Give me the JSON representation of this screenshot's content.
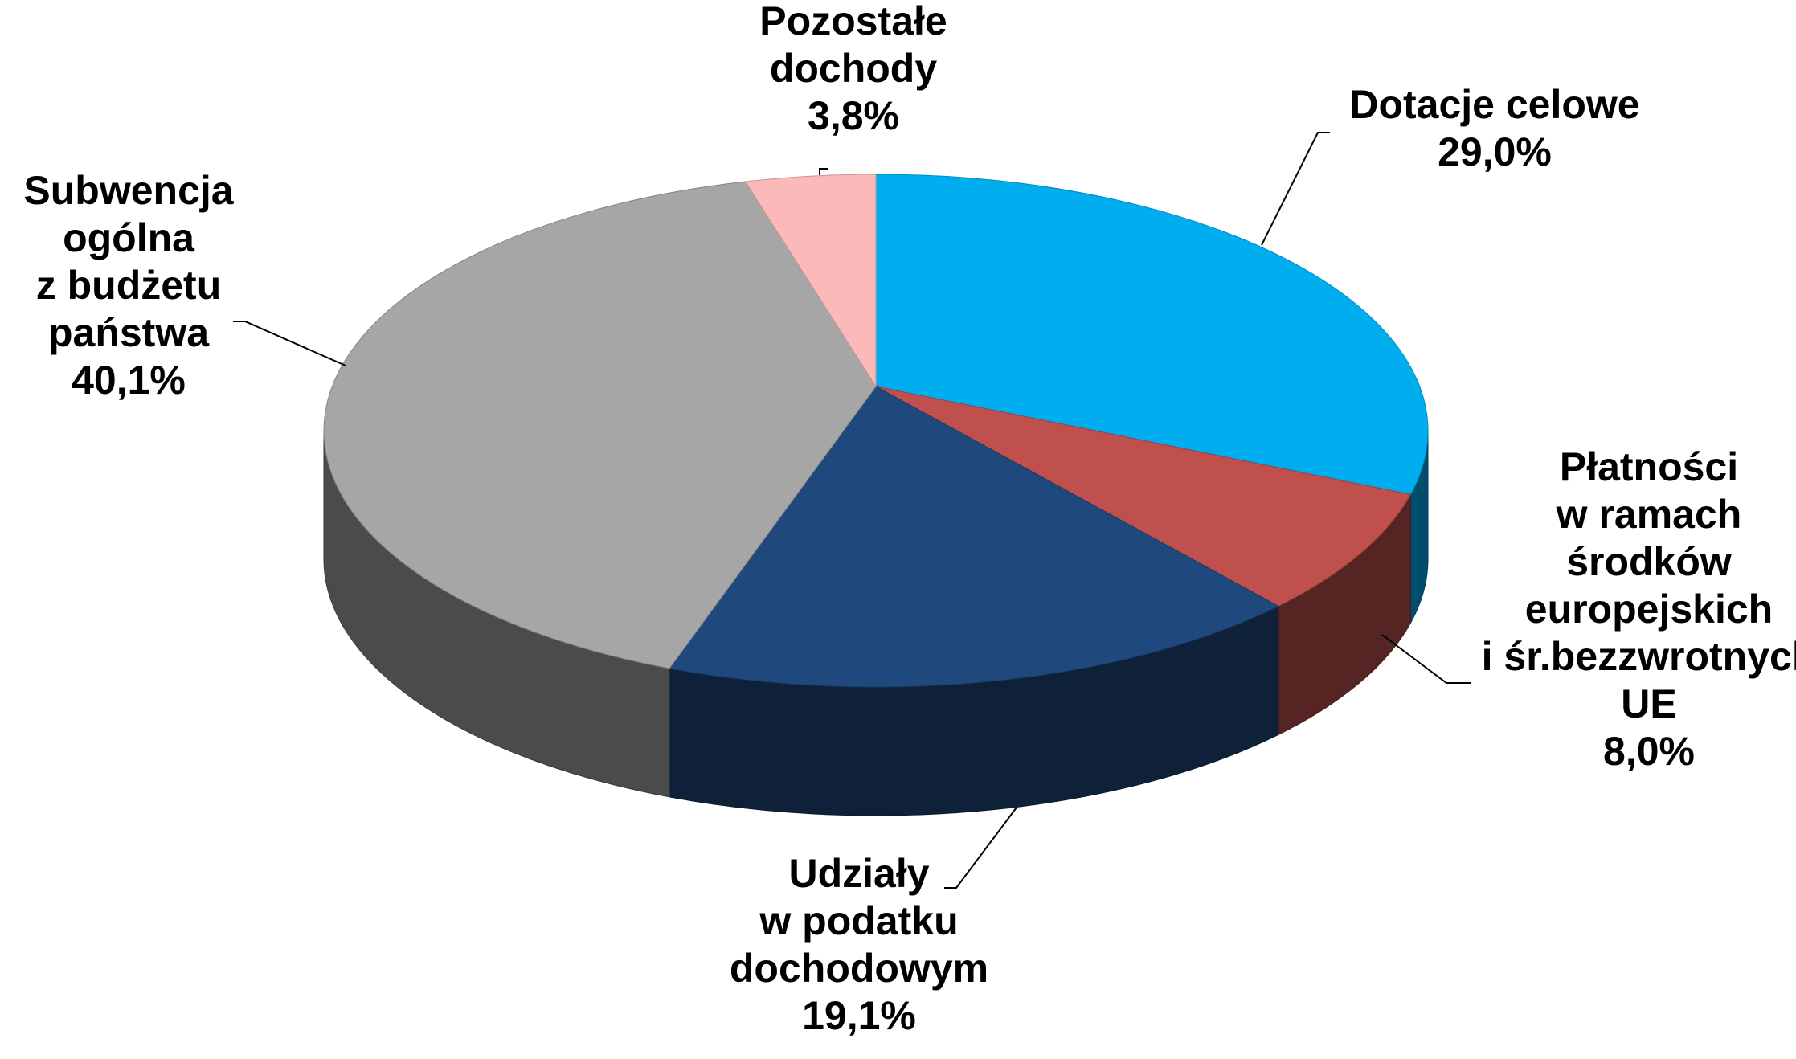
{
  "chart_data": {
    "type": "pie",
    "categories": [
      [
        "Dotacje celowe"
      ],
      [
        "Płatności",
        "w ramach",
        "środków",
        "europejskich",
        "i śr.bezzwrotnych",
        "UE"
      ],
      [
        "Udziały",
        "w podatku",
        "dochodowym"
      ],
      [
        "Subwencja",
        "ogólna",
        "z budżetu",
        "państwa"
      ],
      [
        "Pozostałe",
        "dochody"
      ]
    ],
    "values": [
      29.0,
      8.0,
      19.1,
      40.1,
      3.8
    ],
    "value_labels": [
      "29,0%",
      "8,0%",
      "19,1%",
      "40,1%",
      "3,8%"
    ],
    "colors": [
      "#00aeef",
      "#c0504d",
      "#1f497d",
      "#a6a6a6",
      "#fbb9b9"
    ]
  }
}
